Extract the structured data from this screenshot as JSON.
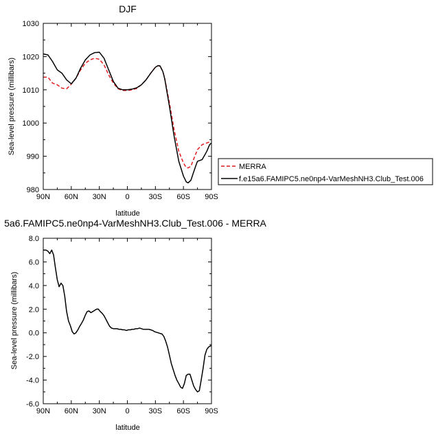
{
  "chart_data": [
    {
      "type": "line",
      "title": "DJF",
      "xlabel": "latitude",
      "ylabel": "Sea-level pressure (millibars)",
      "xlim": [
        90,
        -90
      ],
      "ylim": [
        980,
        1030
      ],
      "x_ticks": [
        90,
        60,
        30,
        0,
        -30,
        -60,
        -90
      ],
      "x_tick_labels": [
        "90N",
        "60N",
        "30N",
        "0",
        "30S",
        "60S",
        "90S"
      ],
      "y_ticks": [
        980,
        990,
        1000,
        1010,
        1020,
        1030
      ],
      "y_tick_labels": [
        "980",
        "990",
        "1000",
        "1010",
        "1020",
        "1030"
      ],
      "grid": false,
      "legend_position": "right",
      "series": [
        {
          "name": "MERRA",
          "color": "#e41a1c",
          "dash": true,
          "x": [
            90,
            85,
            80,
            75,
            70,
            65,
            60,
            55,
            50,
            45,
            40,
            35,
            30,
            25,
            20,
            15,
            10,
            5,
            0,
            -5,
            -10,
            -15,
            -20,
            -25,
            -30,
            -33,
            -35,
            -38,
            -40,
            -45,
            -50,
            -55,
            -60,
            -63,
            -65,
            -68,
            -70,
            -75,
            -80,
            -85,
            -90
          ],
          "y": [
            1013.8,
            1013.8,
            1012.0,
            1011.5,
            1010.5,
            1010.3,
            1011.7,
            1013.5,
            1016.0,
            1018.0,
            1019.0,
            1019.5,
            1019.2,
            1017.5,
            1014.5,
            1012.0,
            1010.3,
            1009.8,
            1009.8,
            1010.0,
            1010.4,
            1011.5,
            1013.0,
            1015.0,
            1016.8,
            1017.3,
            1017.0,
            1015.5,
            1013.5,
            1006.0,
            998.0,
            991.5,
            988.0,
            986.6,
            986.5,
            987.0,
            988.5,
            992.0,
            993.5,
            994.0,
            994.5
          ]
        },
        {
          "name": "f.e15a6.FAMIPC5.ne0np4-VarMeshNH3.Club_Test.006",
          "color": "#000000",
          "dash": false,
          "x": [
            90,
            85,
            80,
            75,
            70,
            65,
            60,
            55,
            50,
            45,
            40,
            35,
            30,
            25,
            20,
            15,
            10,
            5,
            0,
            -5,
            -10,
            -15,
            -20,
            -25,
            -30,
            -33,
            -35,
            -38,
            -40,
            -45,
            -50,
            -55,
            -60,
            -63,
            -65,
            -68,
            -70,
            -73,
            -75,
            -78,
            -80,
            -83,
            -85,
            -88,
            -90
          ],
          "y": [
            1020.8,
            1020.5,
            1018.5,
            1016.0,
            1015.0,
            1013.0,
            1011.8,
            1013.5,
            1016.5,
            1019.0,
            1020.5,
            1021.2,
            1021.3,
            1019.5,
            1016.0,
            1012.5,
            1010.5,
            1010.0,
            1010.0,
            1010.2,
            1010.6,
            1011.5,
            1013.0,
            1015.0,
            1016.8,
            1017.3,
            1017.2,
            1015.5,
            1013.3,
            1005.0,
            996.0,
            988.5,
            984.0,
            982.3,
            982.0,
            982.8,
            984.5,
            987.0,
            988.5,
            988.8,
            989.0,
            990.5,
            991.5,
            993.5,
            994.0
          ]
        }
      ]
    },
    {
      "type": "line",
      "title": "5a6.FAMIPC5.ne0np4-VarMeshNH3.Club_Test.006 - MERRA",
      "xlabel": "latitude",
      "ylabel": "Sea-level pressure (millibars)",
      "xlim": [
        90,
        -90
      ],
      "ylim": [
        -6,
        8
      ],
      "x_ticks": [
        90,
        60,
        30,
        0,
        -30,
        -60,
        -90
      ],
      "x_tick_labels": [
        "90N",
        "60N",
        "30N",
        "0",
        "30S",
        "60S",
        "90S"
      ],
      "y_ticks": [
        -6,
        -4,
        -2,
        0,
        2,
        4,
        6,
        8
      ],
      "y_tick_labels": [
        "-6.0",
        "-4.0",
        "-2.0",
        "0.0",
        "2.0",
        "4.0",
        "6.0",
        "8.0"
      ],
      "grid": false,
      "series": [
        {
          "color": "#000000",
          "dash": false,
          "x": [
            90,
            87,
            85,
            83,
            81,
            79,
            77,
            75,
            73,
            71,
            69,
            67,
            65,
            63,
            61,
            59,
            57,
            55,
            53,
            51,
            49,
            47,
            45,
            43,
            41,
            39,
            37,
            35,
            33,
            31,
            29,
            27,
            25,
            23,
            21,
            19,
            17,
            15,
            13,
            11,
            9,
            7,
            5,
            3,
            1,
            -1,
            -3,
            -5,
            -7,
            -9,
            -11,
            -13,
            -15,
            -17,
            -19,
            -21,
            -23,
            -25,
            -27,
            -29,
            -31,
            -33,
            -35,
            -37,
            -39,
            -41,
            -43,
            -45,
            -47,
            -49,
            -51,
            -53,
            -55,
            -57,
            -59,
            -61,
            -63,
            -65,
            -67,
            -69,
            -71,
            -73,
            -75,
            -77,
            -79,
            -81,
            -83,
            -85,
            -87,
            -89,
            -90
          ],
          "y": [
            7.0,
            7.0,
            6.9,
            6.7,
            7.0,
            6.6,
            5.5,
            4.5,
            3.9,
            4.2,
            4.0,
            3.1,
            1.8,
            1.0,
            0.6,
            0.1,
            -0.1,
            0.0,
            0.25,
            0.55,
            0.8,
            1.1,
            1.5,
            1.8,
            1.85,
            1.7,
            1.8,
            1.9,
            2.0,
            2.0,
            1.8,
            1.65,
            1.45,
            1.15,
            0.85,
            0.55,
            0.4,
            0.35,
            0.35,
            0.35,
            0.3,
            0.3,
            0.25,
            0.25,
            0.2,
            0.25,
            0.25,
            0.3,
            0.3,
            0.35,
            0.35,
            0.4,
            0.35,
            0.3,
            0.3,
            0.3,
            0.3,
            0.25,
            0.2,
            0.1,
            0.05,
            0.0,
            -0.05,
            -0.1,
            -0.3,
            -0.7,
            -1.2,
            -1.9,
            -2.6,
            -3.1,
            -3.6,
            -4.0,
            -4.3,
            -4.6,
            -4.7,
            -4.3,
            -3.6,
            -3.5,
            -3.5,
            -4.0,
            -4.5,
            -4.8,
            -5.0,
            -4.9,
            -4.0,
            -3.0,
            -1.9,
            -1.4,
            -1.2,
            -1.1,
            -1.1
          ]
        }
      ]
    }
  ]
}
